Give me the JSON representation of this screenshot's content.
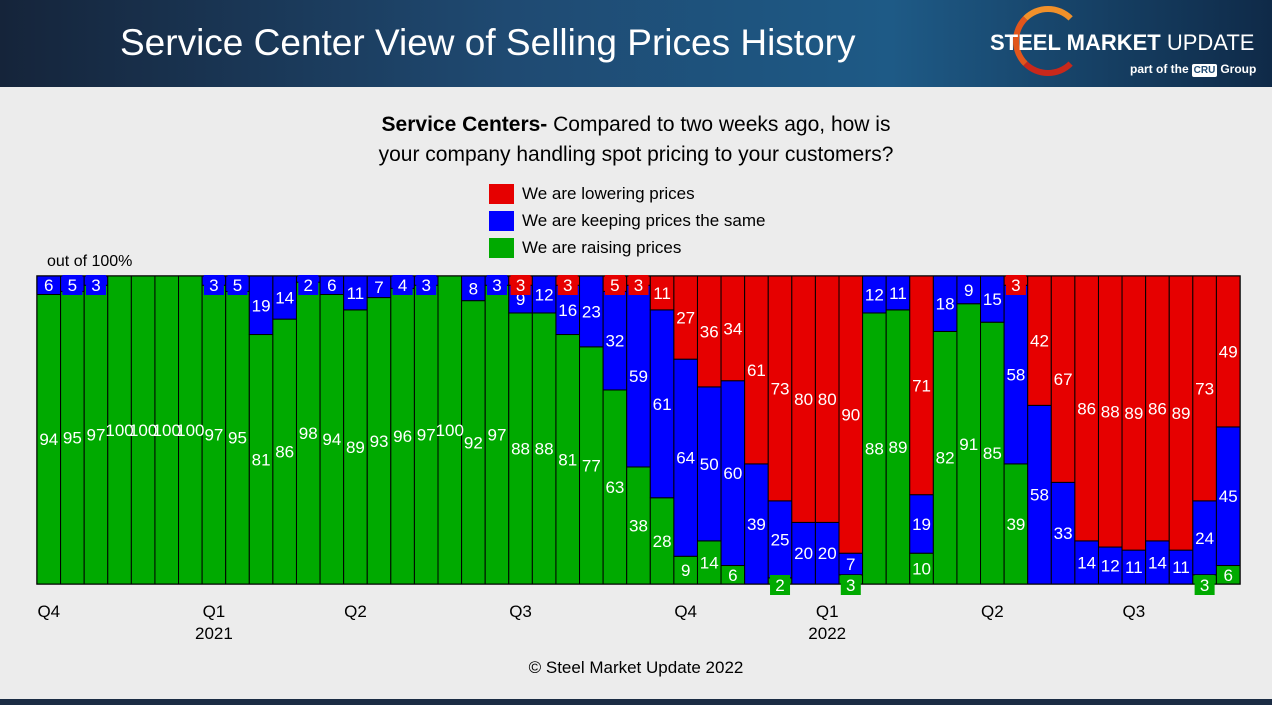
{
  "header": {
    "title": "Service Center View of Selling Prices History",
    "logo_text": "STEEL MARKET UPDATE",
    "logo_sub": "part of the CRU Group"
  },
  "chart_data": {
    "type": "bar",
    "stacked": true,
    "title_bold": "Service Centers-",
    "title_line1": " Compared to two weeks ago, how is",
    "title_line2": "your company handling spot pricing to your customers?",
    "ylabel": "out of 100%",
    "ylim": [
      0,
      100
    ],
    "legend_position": "top-center",
    "series": [
      {
        "name": "We are lowering prices",
        "color": "#e60000",
        "values": [
          0,
          0,
          0,
          0,
          0,
          0,
          0,
          0,
          0,
          0,
          0,
          0,
          0,
          0,
          0,
          0,
          0,
          0,
          0,
          0,
          3,
          0,
          3,
          0,
          5,
          3,
          11,
          27,
          36,
          34,
          61,
          73,
          80,
          80,
          90,
          0,
          0,
          71,
          0,
          0,
          0,
          3,
          42,
          67,
          86,
          88,
          89,
          86,
          89,
          73,
          49
        ]
      },
      {
        "name": "We are keeping prices the same",
        "color": "#0000ff",
        "values": [
          6,
          5,
          3,
          0,
          0,
          0,
          0,
          3,
          5,
          19,
          14,
          2,
          6,
          11,
          7,
          4,
          3,
          0,
          8,
          3,
          9,
          12,
          16,
          23,
          32,
          59,
          61,
          64,
          50,
          60,
          39,
          25,
          20,
          20,
          7,
          12,
          11,
          19,
          18,
          9,
          15,
          58,
          58,
          33,
          14,
          12,
          11,
          14,
          11,
          24,
          45
        ]
      },
      {
        "name": "We are raising prices",
        "color": "#00aa00",
        "values": [
          94,
          95,
          97,
          100,
          100,
          100,
          100,
          97,
          95,
          81,
          86,
          98,
          94,
          89,
          93,
          96,
          97,
          100,
          92,
          97,
          88,
          88,
          81,
          77,
          63,
          38,
          28,
          9,
          14,
          6,
          0,
          2,
          0,
          0,
          3,
          88,
          89,
          10,
          82,
          91,
          85,
          39,
          0,
          0,
          0,
          0,
          0,
          0,
          0,
          3,
          6
        ]
      }
    ],
    "x_ticks": [
      {
        "bar": 1,
        "label": "Q4",
        "year": ""
      },
      {
        "bar": 8,
        "label": "Q1",
        "year": "2021"
      },
      {
        "bar": 14,
        "label": "Q2",
        "year": ""
      },
      {
        "bar": 21,
        "label": "Q3",
        "year": ""
      },
      {
        "bar": 28,
        "label": "Q4",
        "year": ""
      },
      {
        "bar": 34,
        "label": "Q1",
        "year": "2022"
      },
      {
        "bar": 41,
        "label": "Q2",
        "year": ""
      },
      {
        "bar": 47,
        "label": "Q3",
        "year": ""
      }
    ]
  },
  "footer": "© Steel Market Update 2022"
}
